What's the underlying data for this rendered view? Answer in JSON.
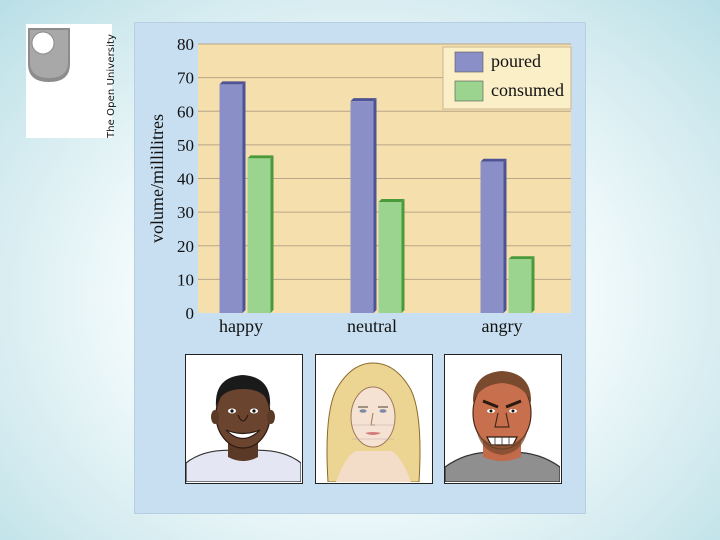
{
  "branding": {
    "logo_text": "The Open University"
  },
  "chart_data": {
    "type": "bar",
    "title": "",
    "xlabel": "",
    "ylabel": "volume/millilitres",
    "ylim": [
      0,
      80
    ],
    "yticks": [
      0,
      10,
      20,
      30,
      40,
      50,
      60,
      70,
      80
    ],
    "categories": [
      "happy",
      "neutral",
      "angry"
    ],
    "series": [
      {
        "name": "poured",
        "color": "#8a8fc7",
        "values": [
          68,
          63,
          45
        ]
      },
      {
        "name": "consumed",
        "color": "#9bd48e",
        "values": [
          46,
          33,
          16
        ]
      }
    ],
    "legend_position": "top-right",
    "grid": true
  },
  "faces": [
    {
      "label": "happy face"
    },
    {
      "label": "neutral face"
    },
    {
      "label": "angry face"
    }
  ],
  "colors": {
    "plot_background": "#f5dfac",
    "gridline": "#b8a688",
    "panel_background": "#c7dff1"
  }
}
